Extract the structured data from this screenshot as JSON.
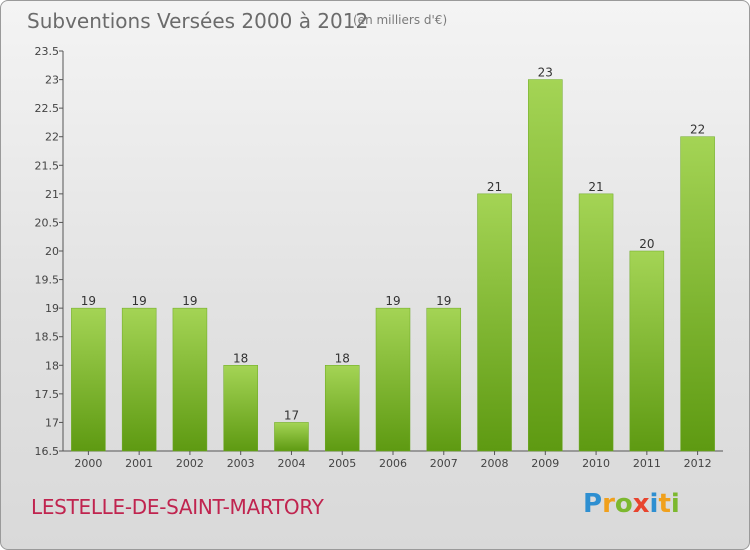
{
  "title": "Subventions Versées 2000 à 2012",
  "unit_note": "(en milliers d'€)",
  "place_name": "LESTELLE-DE-SAINT-MARTORY",
  "brand_letters": [
    "P",
    "r",
    "o",
    "x",
    "i",
    "t",
    "i"
  ],
  "colors": {
    "bar_top": "#a4d455",
    "bar_bottom": "#5e9a12",
    "title_text": "#6b6b6b",
    "place_text": "#c0244f"
  },
  "chart_data": {
    "type": "bar",
    "categories": [
      "2000",
      "2001",
      "2002",
      "2003",
      "2004",
      "2005",
      "2006",
      "2007",
      "2008",
      "2009",
      "2010",
      "2011",
      "2012"
    ],
    "values": [
      19,
      19,
      19,
      18,
      17,
      18,
      19,
      19,
      21,
      23,
      21,
      20,
      22
    ],
    "data_labels": [
      "19",
      "19",
      "19",
      "18",
      "17",
      "18",
      "19",
      "19",
      "21",
      "23",
      "21",
      "20",
      "22"
    ],
    "y_ticks": [
      "16.5",
      "17",
      "17.5",
      "18",
      "18.5",
      "19",
      "19.5",
      "20",
      "20.5",
      "21",
      "21.5",
      "22",
      "22.5",
      "23",
      "23.5"
    ],
    "ylim": [
      16.5,
      23.5
    ],
    "grid": false,
    "legend": "none"
  }
}
